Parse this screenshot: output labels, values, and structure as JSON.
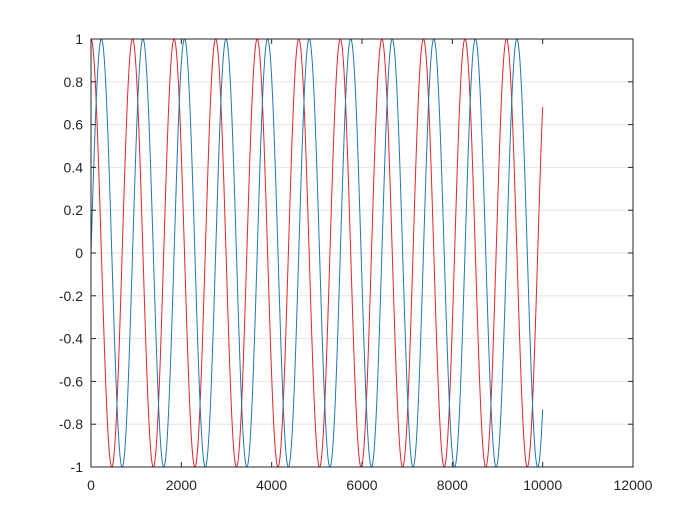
{
  "chart_data": {
    "type": "line",
    "title": "",
    "xlabel": "",
    "ylabel": "",
    "xlim": [
      0,
      12000
    ],
    "ylim": [
      -1,
      1
    ],
    "x_ticks": [
      "0",
      "2000",
      "4000",
      "6000",
      "8000",
      "10000",
      "12000"
    ],
    "y_ticks": [
      "-1",
      "-0.8",
      "-0.6",
      "-0.4",
      "-0.2",
      "0",
      "0.2",
      "0.4",
      "0.6",
      "0.8",
      "1"
    ],
    "grid": "horizontal",
    "box": true,
    "legend": "none",
    "series": [
      {
        "function": "cos",
        "x_range": [
          0,
          10000
        ],
        "period": 920,
        "phase_deg": 0,
        "amplitude": 1,
        "color": "#e3242b"
      },
      {
        "function": "sin",
        "x_range": [
          0,
          10000
        ],
        "period": 920,
        "phase_deg": 0,
        "amplitude": 1,
        "color": "#1f77b4"
      }
    ]
  }
}
